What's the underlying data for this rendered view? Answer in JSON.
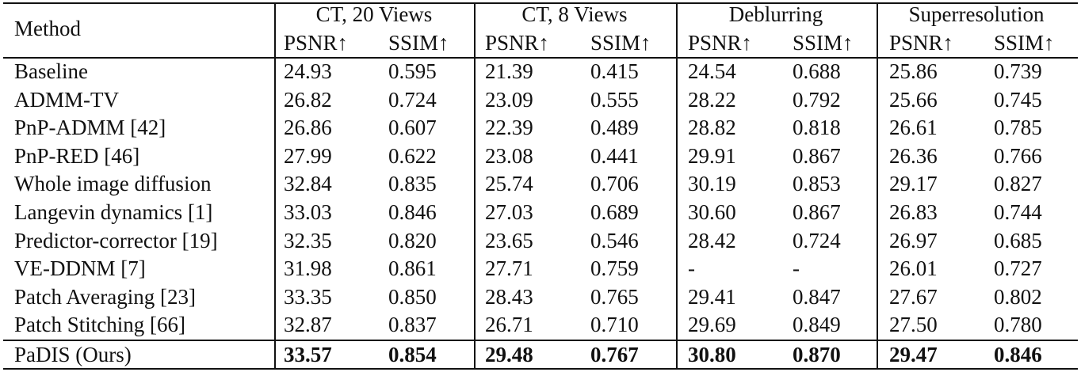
{
  "table": {
    "method_header": "Method",
    "groups": [
      "CT, 20 Views",
      "CT, 8 Views",
      "Deblurring",
      "Superresolution"
    ],
    "subheaders": [
      "PSNR↑",
      "SSIM↑",
      "PSNR↑",
      "SSIM↑",
      "PSNR↑",
      "SSIM↑",
      "PSNR↑",
      "SSIM↑"
    ],
    "rows": [
      [
        "Baseline",
        "24.93",
        "0.595",
        "21.39",
        "0.415",
        "24.54",
        "0.688",
        "25.86",
        "0.739"
      ],
      [
        "ADMM-TV",
        "26.82",
        "0.724",
        "23.09",
        "0.555",
        "28.22",
        "0.792",
        "25.66",
        "0.745"
      ],
      [
        "PnP-ADMM [42]",
        "26.86",
        "0.607",
        "22.39",
        "0.489",
        "28.82",
        "0.818",
        "26.61",
        "0.785"
      ],
      [
        "PnP-RED [46]",
        "27.99",
        "0.622",
        "23.08",
        "0.441",
        "29.91",
        "0.867",
        "26.36",
        "0.766"
      ],
      [
        "Whole image diffusion",
        "32.84",
        "0.835",
        "25.74",
        "0.706",
        "30.19",
        "0.853",
        "29.17",
        "0.827"
      ],
      [
        "Langevin dynamics [1]",
        "33.03",
        "0.846",
        "27.03",
        "0.689",
        "30.60",
        "0.867",
        "26.83",
        "0.744"
      ],
      [
        "Predictor-corrector [19]",
        "32.35",
        "0.820",
        "23.65",
        "0.546",
        "28.42",
        "0.724",
        "26.97",
        "0.685"
      ],
      [
        "VE-DDNM [7]",
        "31.98",
        "0.861",
        "27.71",
        "0.759",
        "-",
        "-",
        "26.01",
        "0.727"
      ],
      [
        "Patch Averaging [23]",
        "33.35",
        "0.850",
        "28.43",
        "0.765",
        "29.41",
        "0.847",
        "27.67",
        "0.802"
      ],
      [
        "Patch Stitching [66]",
        "32.87",
        "0.837",
        "26.71",
        "0.710",
        "29.69",
        "0.849",
        "27.50",
        "0.780"
      ],
      [
        "PaDIS (Ours)",
        "33.57",
        "0.854",
        "29.48",
        "0.767",
        "30.80",
        "0.870",
        "29.47",
        "0.846"
      ]
    ]
  }
}
